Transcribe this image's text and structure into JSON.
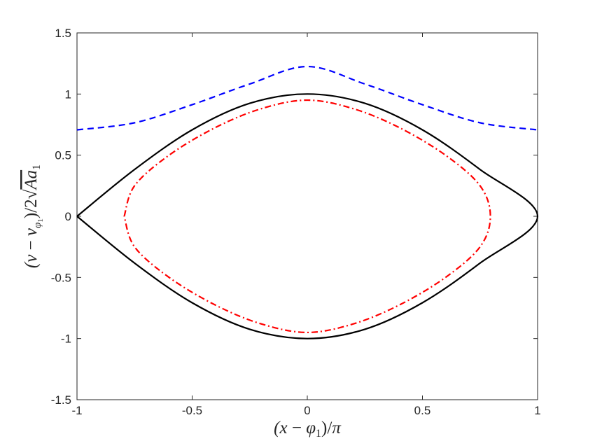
{
  "chart_data": {
    "type": "line",
    "xlabel": "(x − φ₁)/π",
    "ylabel": "(v − v_{φ₁})/2√(Aa₁)",
    "xlim": [
      -1,
      1
    ],
    "ylim": [
      -1.5,
      1.5
    ],
    "x_ticks": [
      "-1",
      "-0.5",
      "0",
      "0.5",
      "1"
    ],
    "y_ticks": [
      "-1.5",
      "-1",
      "-0.5",
      "0",
      "0.5",
      "1",
      "1.5"
    ],
    "grid": false,
    "legend": "none",
    "series": [
      {
        "style": "dashed",
        "color": "#0000ff",
        "points": [
          [
            -1.0,
            0.707
          ],
          [
            -0.75,
            0.765
          ],
          [
            -0.5,
            0.913
          ],
          [
            -0.25,
            1.082
          ],
          [
            0.0,
            1.225
          ],
          [
            0.25,
            1.082
          ],
          [
            0.5,
            0.913
          ],
          [
            0.75,
            0.765
          ],
          [
            1.0,
            0.707
          ]
        ]
      },
      {
        "style": "solid",
        "color": "#000000",
        "points": [
          [
            -1.0,
            0.0
          ],
          [
            -0.75,
            0.383
          ],
          [
            -0.5,
            0.707
          ],
          [
            -0.25,
            0.924
          ],
          [
            0.0,
            1.0
          ],
          [
            0.25,
            0.924
          ],
          [
            0.5,
            0.707
          ],
          [
            0.75,
            0.383
          ],
          [
            1.0,
            0.0
          ],
          [
            0.75,
            -0.383
          ],
          [
            0.5,
            -0.707
          ],
          [
            0.25,
            -0.924
          ],
          [
            0.0,
            -1.0
          ],
          [
            -0.25,
            -0.924
          ],
          [
            -0.5,
            -0.707
          ],
          [
            -0.75,
            -0.383
          ],
          [
            -1.0,
            0.0
          ]
        ]
      },
      {
        "style": "dash-dot",
        "color": "#ff0000",
        "points": [
          [
            -0.795,
            0.0
          ],
          [
            -0.75,
            0.25
          ],
          [
            -0.6,
            0.5
          ],
          [
            -0.4,
            0.725
          ],
          [
            -0.2,
            0.88
          ],
          [
            0.0,
            0.95
          ],
          [
            0.2,
            0.88
          ],
          [
            0.4,
            0.725
          ],
          [
            0.6,
            0.5
          ],
          [
            0.75,
            0.25
          ],
          [
            0.795,
            0.0
          ],
          [
            0.75,
            -0.25
          ],
          [
            0.6,
            -0.5
          ],
          [
            0.4,
            -0.725
          ],
          [
            0.2,
            -0.88
          ],
          [
            0.0,
            -0.95
          ],
          [
            -0.2,
            -0.88
          ],
          [
            -0.4,
            -0.725
          ],
          [
            -0.6,
            -0.5
          ],
          [
            -0.75,
            -0.25
          ],
          [
            -0.795,
            0.0
          ]
        ]
      }
    ]
  }
}
